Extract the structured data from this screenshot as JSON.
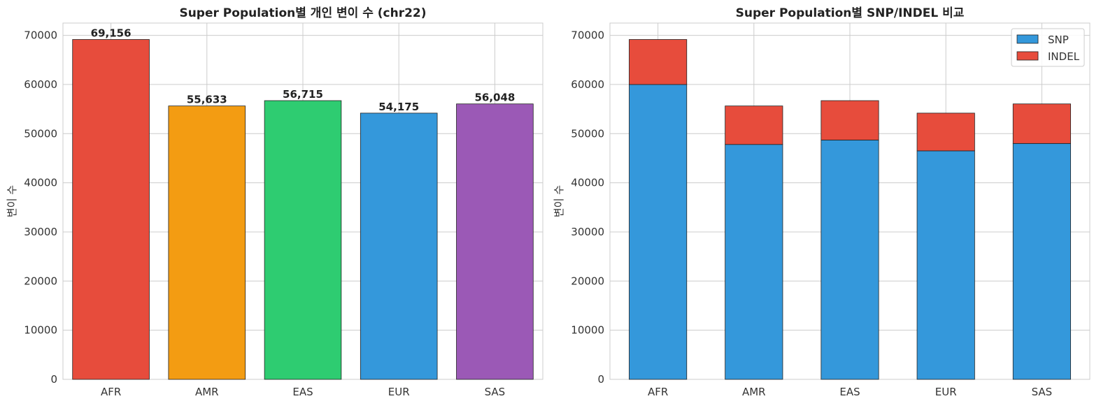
{
  "chart_data": [
    {
      "type": "bar",
      "title": "Super Population별 개인 변이 수 (chr22)",
      "xlabel": "",
      "ylabel": "변이 수",
      "categories": [
        "AFR",
        "AMR",
        "EAS",
        "EUR",
        "SAS"
      ],
      "values": [
        69156,
        55633,
        56715,
        54175,
        56048
      ],
      "value_labels": [
        "69,156",
        "55,633",
        "56,715",
        "54,175",
        "56,048"
      ],
      "colors": [
        "#e74c3c",
        "#f39c12",
        "#2ecc71",
        "#3498db",
        "#9b59b6"
      ],
      "ylim": [
        0,
        72500
      ],
      "yticks": [
        0,
        10000,
        20000,
        30000,
        40000,
        50000,
        60000,
        70000
      ],
      "ytick_labels": [
        "0",
        "10000",
        "20000",
        "30000",
        "40000",
        "50000",
        "60000",
        "70000"
      ],
      "grid": true
    },
    {
      "type": "bar",
      "stacked": true,
      "title": "Super Population별 SNP/INDEL 비교",
      "xlabel": "",
      "ylabel": "변이 수",
      "categories": [
        "AFR",
        "AMR",
        "EAS",
        "EUR",
        "SAS"
      ],
      "series": [
        {
          "name": "SNP",
          "color": "#3498db",
          "values": [
            60000,
            47800,
            48700,
            46500,
            48000
          ]
        },
        {
          "name": "INDEL",
          "color": "#e74c3c",
          "values": [
            9156,
            7833,
            8015,
            7675,
            8048
          ]
        }
      ],
      "ylim": [
        0,
        72500
      ],
      "yticks": [
        0,
        10000,
        20000,
        30000,
        40000,
        50000,
        60000,
        70000
      ],
      "ytick_labels": [
        "0",
        "10000",
        "20000",
        "30000",
        "40000",
        "50000",
        "60000",
        "70000"
      ],
      "legend": "top-right",
      "grid": true
    }
  ]
}
